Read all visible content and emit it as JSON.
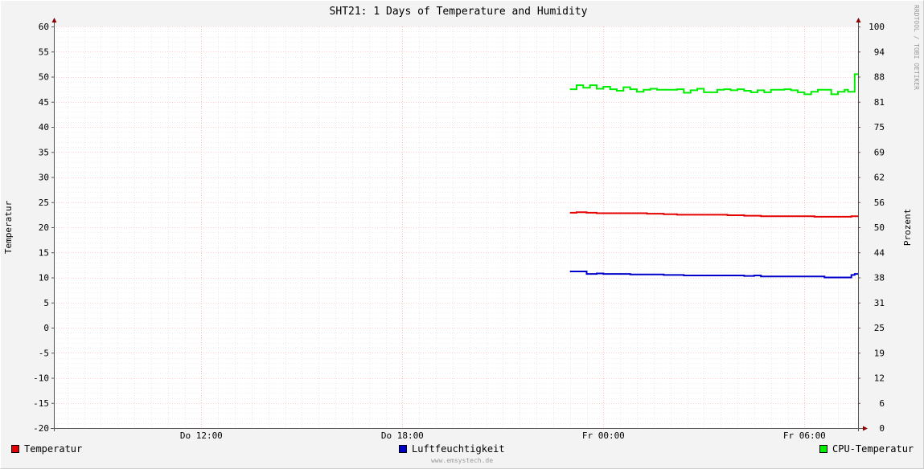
{
  "chart_data": {
    "type": "line",
    "title": "SHT21: 1 Days of Temperature and Humidity",
    "ylabel": "Temperatur",
    "y2label": "Prozent",
    "ylim": [
      -20,
      60
    ],
    "y2lim": [
      0,
      100
    ],
    "y_ticks": [
      "60",
      "55",
      "50",
      "45",
      "40",
      "35",
      "30",
      "25",
      "20",
      "15",
      "10",
      "5",
      "0",
      "-5",
      "-10",
      "-15",
      "-20"
    ],
    "y2_ticks": [
      "100",
      "94",
      "88",
      "81",
      "75",
      "69",
      "62",
      "56",
      "50",
      "44",
      "38",
      "31",
      "25",
      "19",
      "12",
      "6",
      "0"
    ],
    "x_ticks": [
      {
        "label": "Do 12:00",
        "hour": 12
      },
      {
        "label": "Do 18:00",
        "hour": 18
      },
      {
        "label": "Fr 00:00",
        "hour": 24
      },
      {
        "label": "Fr 06:00",
        "hour": 30
      }
    ],
    "xlim_hours": [
      7.6,
      31.6
    ],
    "grid": true,
    "legend_position": "bottom",
    "series": [
      {
        "name": "Temperatur",
        "color": "#e60000",
        "axis": "left",
        "x": [
          23.0,
          23.2,
          23.5,
          23.8,
          24.2,
          24.7,
          25.3,
          25.8,
          26.2,
          26.5,
          26.8,
          27.2,
          27.7,
          28.2,
          28.7,
          29.0,
          29.5,
          30.0,
          30.3,
          30.7,
          31.1,
          31.4,
          31.5
        ],
        "values": [
          22.9,
          23.0,
          22.9,
          22.8,
          22.8,
          22.8,
          22.7,
          22.6,
          22.5,
          22.5,
          22.5,
          22.5,
          22.4,
          22.3,
          22.2,
          22.2,
          22.2,
          22.2,
          22.1,
          22.1,
          22.1,
          22.2,
          22.2
        ]
      },
      {
        "name": "Luftfeuchtigkeit",
        "color": "#0000cc",
        "axis": "left",
        "x": [
          23.0,
          23.3,
          23.5,
          23.8,
          24.0,
          24.4,
          24.8,
          25.3,
          25.8,
          26.4,
          27.0,
          27.6,
          28.2,
          28.5,
          28.7,
          29.0,
          29.5,
          30.0,
          30.3,
          30.6,
          30.9,
          31.2,
          31.4,
          31.5
        ],
        "values": [
          11.2,
          11.2,
          10.7,
          10.8,
          10.7,
          10.7,
          10.6,
          10.6,
          10.5,
          10.4,
          10.4,
          10.4,
          10.3,
          10.4,
          10.2,
          10.2,
          10.2,
          10.2,
          10.2,
          10.0,
          10.0,
          10.0,
          10.5,
          10.7
        ]
      },
      {
        "name": "CPU-Temperatur",
        "color": "#00ee00",
        "axis": "left",
        "x": [
          23.0,
          23.2,
          23.4,
          23.6,
          23.8,
          24.0,
          24.2,
          24.4,
          24.6,
          24.8,
          25.0,
          25.2,
          25.4,
          25.6,
          25.8,
          26.0,
          26.2,
          26.4,
          26.6,
          26.8,
          27.0,
          27.2,
          27.4,
          27.6,
          27.8,
          28.0,
          28.2,
          28.4,
          28.6,
          28.8,
          29.0,
          29.2,
          29.4,
          29.6,
          29.8,
          30.0,
          30.2,
          30.4,
          30.6,
          30.8,
          31.0,
          31.2,
          31.3,
          31.5
        ],
        "values": [
          47.5,
          48.3,
          47.8,
          48.3,
          47.6,
          48.0,
          47.5,
          47.2,
          47.9,
          47.5,
          47.0,
          47.4,
          47.6,
          47.4,
          47.4,
          47.4,
          47.5,
          46.8,
          47.3,
          47.6,
          46.9,
          46.9,
          47.4,
          47.5,
          47.3,
          47.5,
          47.2,
          46.9,
          47.3,
          46.9,
          47.4,
          47.4,
          47.5,
          47.3,
          46.9,
          46.5,
          47.0,
          47.4,
          47.4,
          46.5,
          47.0,
          47.4,
          47.0,
          50.5
        ]
      }
    ]
  },
  "side_text": "RRDTOOL / TOBI OETIKER",
  "footer": "www.emsystech.de",
  "colors": {
    "background": "#f3f3f3",
    "canvas": "#ffffff",
    "major_grid": "#ff9999",
    "minor_grid": "#dddddd",
    "axis": "#555555",
    "arrow": "#8b0000"
  }
}
